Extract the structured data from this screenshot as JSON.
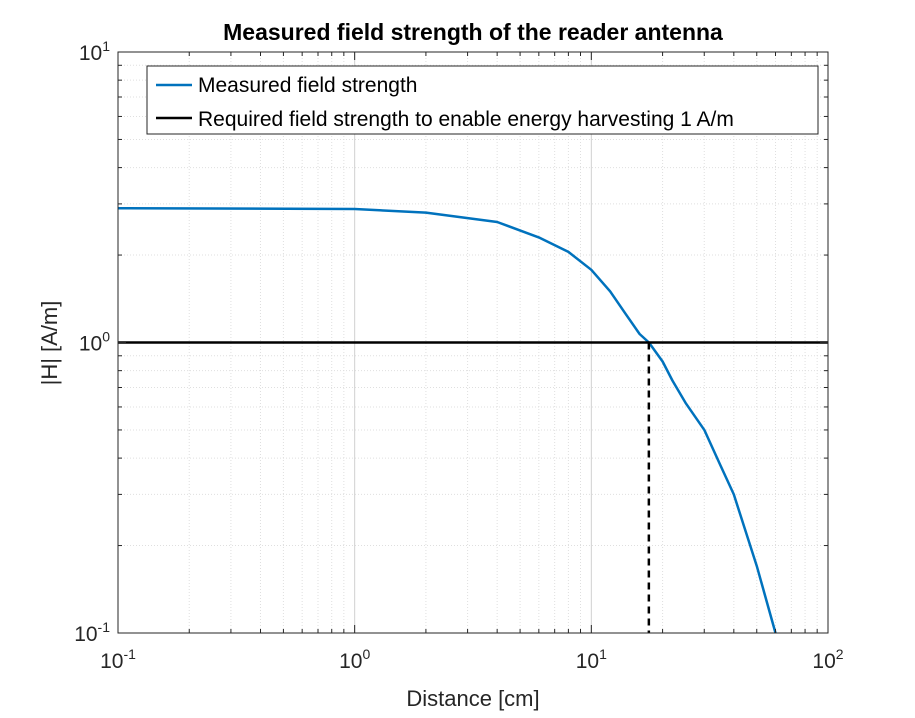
{
  "chart_data": {
    "type": "line",
    "title": "Measured field strength of the reader antenna",
    "xlabel": "Distance [cm]",
    "ylabel": "|H| [A/m]",
    "xscale": "log",
    "yscale": "log",
    "xlim": [
      0.1,
      100
    ],
    "ylim": [
      0.1,
      10
    ],
    "grid": true,
    "minor_grid": true,
    "legend_location": "top-left",
    "x_ticks": [
      {
        "base": "10",
        "exp": "-1",
        "value": 0.1
      },
      {
        "base": "10",
        "exp": "0",
        "value": 1
      },
      {
        "base": "10",
        "exp": "1",
        "value": 10
      },
      {
        "base": "10",
        "exp": "2",
        "value": 100
      }
    ],
    "y_ticks": [
      {
        "base": "10",
        "exp": "-1",
        "value": 0.1
      },
      {
        "base": "10",
        "exp": "0",
        "value": 1
      },
      {
        "base": "10",
        "exp": "1",
        "value": 10
      }
    ],
    "series": [
      {
        "name": "Measured field strength",
        "color": "#0072BD",
        "x": [
          0.1,
          1,
          2,
          4,
          6,
          8,
          10,
          12,
          14,
          16,
          17.5,
          20,
          22,
          25,
          30,
          35,
          40,
          50,
          60
        ],
        "y": [
          2.9,
          2.88,
          2.8,
          2.6,
          2.3,
          2.05,
          1.78,
          1.5,
          1.25,
          1.07,
          1.0,
          0.86,
          0.74,
          0.62,
          0.5,
          0.38,
          0.3,
          0.17,
          0.1
        ]
      },
      {
        "name": "Required field strength to enable energy harvesting 1 A/m",
        "color": "#000000",
        "x": [
          0.1,
          100
        ],
        "y": [
          1,
          1
        ]
      }
    ],
    "annotations": [
      {
        "type": "dashed-vertical-line",
        "x": 17.5,
        "y_from": 0.1,
        "y_to": 1,
        "color": "#000000"
      }
    ]
  }
}
